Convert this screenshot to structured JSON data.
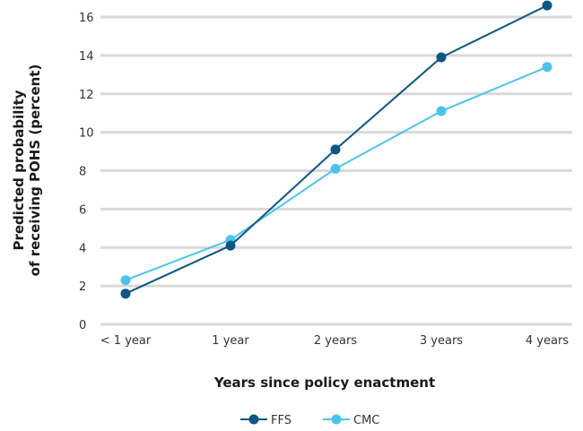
{
  "chart_data": {
    "type": "line",
    "categories": [
      "< 1 year",
      "1 year",
      "2 years",
      "3 years",
      "4 years"
    ],
    "series": [
      {
        "name": "FFS",
        "values": [
          1.6,
          4.1,
          9.1,
          13.9,
          16.6
        ],
        "color": "#0b5785"
      },
      {
        "name": "CMC",
        "values": [
          2.3,
          4.4,
          8.1,
          11.1,
          13.4
        ],
        "color": "#4cc3ee"
      }
    ],
    "title": "",
    "xlabel": "Years since policy enactment",
    "ylabel_lines": [
      "Predicted probability",
      "of receiving POHS (percent)"
    ],
    "ylim": [
      0,
      16
    ],
    "yticks": [
      0,
      2,
      4,
      6,
      8,
      10,
      12,
      14,
      16
    ],
    "grid": true,
    "legend_position": "bottom"
  }
}
